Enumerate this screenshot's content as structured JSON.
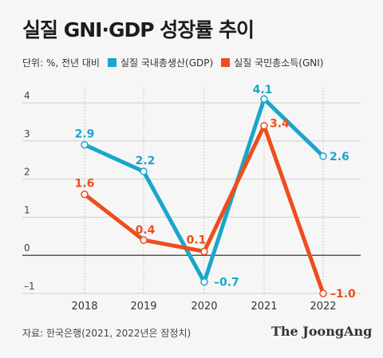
{
  "header": {
    "title": "실질 GNI·GDP 성장률 추이",
    "unit_note": "단위: %, 전년 대비"
  },
  "footer": {
    "source": "자료: 한국은행(2021, 2022년은 잠정치)",
    "logo": "The JoongAng"
  },
  "colors": {
    "gdp": "#1aa6cc",
    "gni": "#ee4d1d",
    "grid": "#d0d0d0",
    "zero": "#222222"
  },
  "chart_data": {
    "type": "line",
    "title": "실질 GNI·GDP 성장률 추이",
    "x": [
      "2018",
      "2019",
      "2020",
      "2021",
      "2022"
    ],
    "ylim": [
      -1,
      4
    ],
    "yticks": [
      4,
      3,
      2,
      1,
      0,
      -1
    ],
    "ytick_labels": [
      "4",
      "3",
      "2",
      "1",
      "0",
      "–1"
    ],
    "grid": true,
    "legend_position": "top",
    "series": [
      {
        "name": "실질 국내총생산(GDP)",
        "values": [
          2.9,
          2.2,
          -0.7,
          4.1,
          2.6
        ],
        "labels": [
          "2.9",
          "2.2",
          "–0.7",
          "4.1",
          "2.6"
        ]
      },
      {
        "name": "실질 국민총소득(GNI)",
        "values": [
          1.6,
          0.4,
          0.1,
          3.4,
          -1.0
        ],
        "labels": [
          "1.6",
          "0.4",
          "0.1",
          "3.4",
          "–1.0"
        ]
      }
    ]
  }
}
